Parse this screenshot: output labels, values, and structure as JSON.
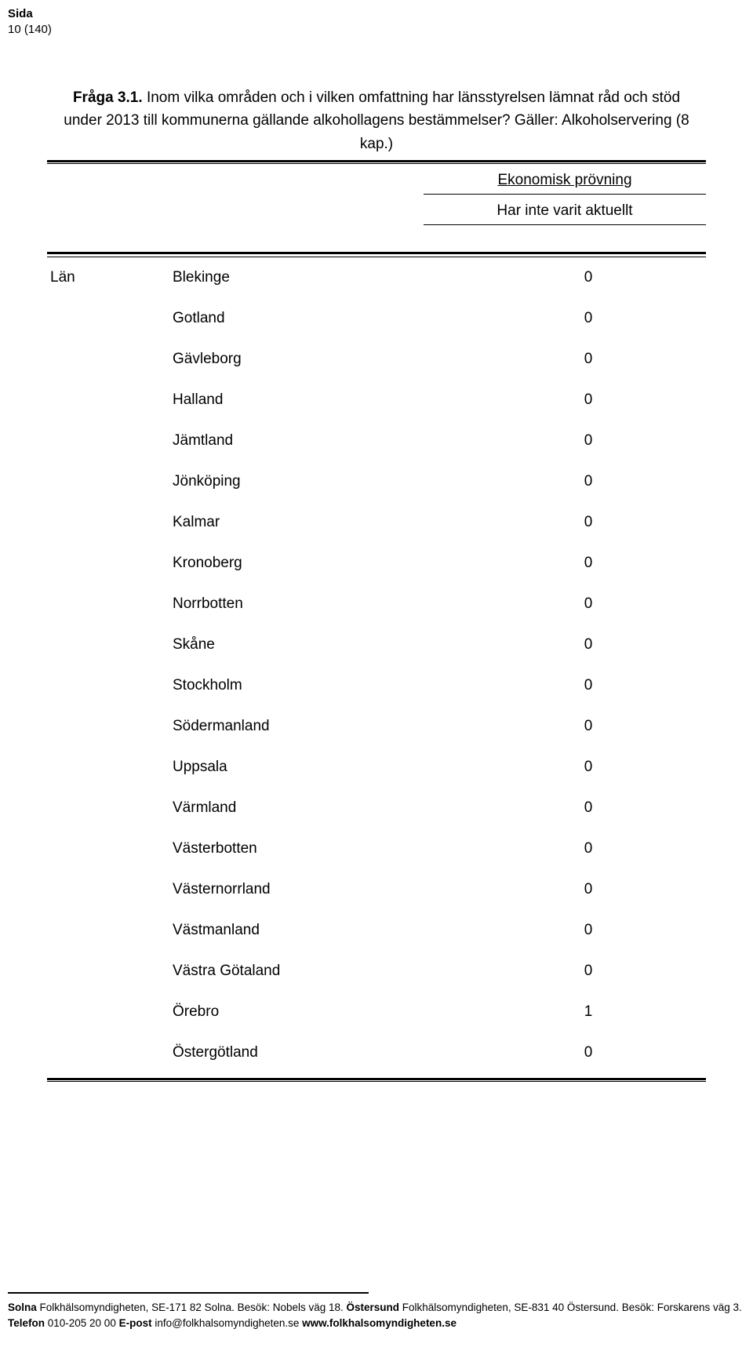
{
  "page_header": {
    "sida_label": "Sida",
    "page_number": "10 (140)"
  },
  "question": {
    "title": "Fråga 3.1.",
    "body": " Inom vilka områden och i vilken omfattning har länsstyrelsen lämnat råd och stöd under 2013 till kommunerna gällande alkohollagens bestämmelser? Gäller: Alkoholservering (8 kap.)"
  },
  "subheaders": {
    "category": "Ekonomisk prövning",
    "status": "Har inte varit aktuellt"
  },
  "group_label": "Län",
  "rows": [
    {
      "name": "Blekinge",
      "value": "0"
    },
    {
      "name": "Gotland",
      "value": "0"
    },
    {
      "name": "Gävleborg",
      "value": "0"
    },
    {
      "name": "Halland",
      "value": "0"
    },
    {
      "name": "Jämtland",
      "value": "0"
    },
    {
      "name": "Jönköping",
      "value": "0"
    },
    {
      "name": "Kalmar",
      "value": "0"
    },
    {
      "name": "Kronoberg",
      "value": "0"
    },
    {
      "name": "Norrbotten",
      "value": "0"
    },
    {
      "name": "Skåne",
      "value": "0"
    },
    {
      "name": "Stockholm",
      "value": "0"
    },
    {
      "name": "Södermanland",
      "value": "0"
    },
    {
      "name": "Uppsala",
      "value": "0"
    },
    {
      "name": "Värmland",
      "value": "0"
    },
    {
      "name": "Västerbotten",
      "value": "0"
    },
    {
      "name": "Västernorrland",
      "value": "0"
    },
    {
      "name": "Västmanland",
      "value": "0"
    },
    {
      "name": "Västra Götaland",
      "value": "0"
    },
    {
      "name": "Örebro",
      "value": "1"
    },
    {
      "name": "Östergötland",
      "value": "0"
    }
  ],
  "footer": {
    "line1_b1": "Solna",
    "line1_t1": " Folkhälsomyndigheten, SE-171 82 Solna. Besök: Nobels väg 18. ",
    "line1_b2": "Östersund",
    "line1_t2": " Folkhälsomyndigheten, SE-831 40 Östersund. Besök: Forskarens väg 3.",
    "line2_b1": "Telefon",
    "line2_t1": " 010-205 20 00 ",
    "line2_b2": "E-post",
    "line2_t2": " info@folkhalsomyndigheten.se ",
    "line2_b3": "www.folkhalsomyndigheten.se"
  }
}
